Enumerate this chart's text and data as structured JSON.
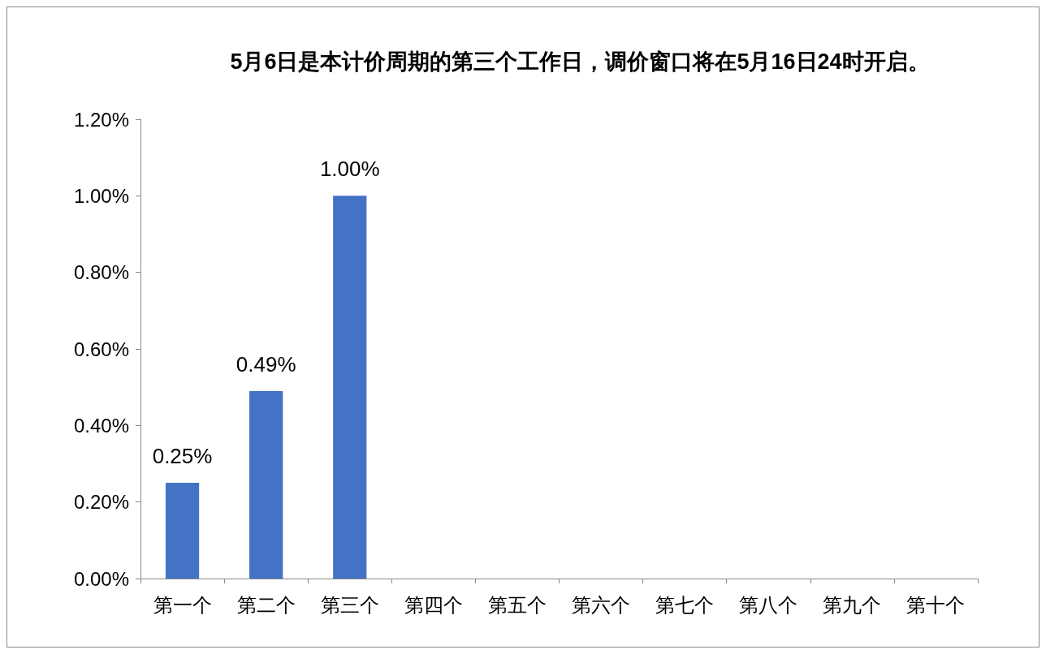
{
  "chart_data": {
    "type": "bar",
    "title": "5月6日是本计价周期的第三个工作日，调价窗口将在5月16日24时开启。",
    "categories": [
      "第一个",
      "第二个",
      "第三个",
      "第四个",
      "第五个",
      "第六个",
      "第七个",
      "第八个",
      "第九个",
      "第十个"
    ],
    "values": [
      0.25,
      0.49,
      1.0,
      null,
      null,
      null,
      null,
      null,
      null,
      null
    ],
    "value_labels": [
      "0.25%",
      "0.49%",
      "1.00%",
      null,
      null,
      null,
      null,
      null,
      null,
      null
    ],
    "color": "#4472c4",
    "ylim": [
      0,
      1.2
    ],
    "yticks": [
      {
        "value": 0,
        "label": "0.00%"
      },
      {
        "value": 0.2,
        "label": "0.20%"
      },
      {
        "value": 0.4,
        "label": "0.40%"
      },
      {
        "value": 0.6,
        "label": "0.60%"
      },
      {
        "value": 0.8,
        "label": "0.80%"
      },
      {
        "value": 1.0,
        "label": "1.00%"
      },
      {
        "value": 1.2,
        "label": "1.20%"
      }
    ],
    "grid": false
  }
}
